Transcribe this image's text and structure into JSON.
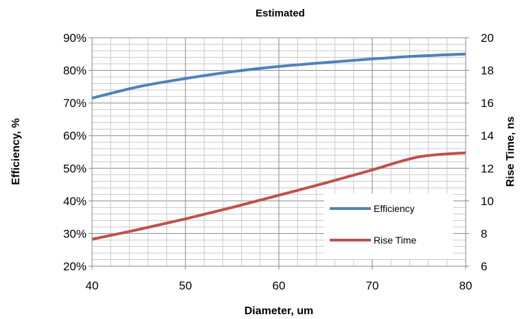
{
  "chart_data": {
    "type": "line",
    "title": "Estimated",
    "xlabel": "Diameter, um",
    "ylabel_left": "Efficiency, %",
    "ylabel_right": "Rise Time, ns",
    "xlim": [
      40,
      80
    ],
    "x_ticks": [
      40,
      50,
      60,
      70,
      80
    ],
    "x_tick_labels": [
      "40",
      "50",
      "60",
      "70",
      "80"
    ],
    "ylim_left": [
      20,
      90
    ],
    "y_left_ticks": [
      20,
      30,
      40,
      50,
      60,
      70,
      80,
      90
    ],
    "y_left_tick_labels": [
      "20%",
      "30%",
      "40%",
      "50%",
      "60%",
      "70%",
      "80%",
      "90%"
    ],
    "ylim_right": [
      6,
      20
    ],
    "y_right_ticks": [
      6,
      8,
      10,
      12,
      14,
      16,
      18,
      20
    ],
    "y_right_tick_labels": [
      "6",
      "8",
      "10",
      "12",
      "14",
      "16",
      "18",
      "20"
    ],
    "grid": true,
    "legend_position": "bottom-right",
    "series": [
      {
        "name": "Efficiency",
        "axis": "left",
        "color": "#4f81bd",
        "x": [
          40,
          45,
          50,
          55,
          60,
          65,
          70,
          75,
          80
        ],
        "y": [
          71.5,
          75.0,
          77.5,
          79.6,
          81.2,
          82.4,
          83.5,
          84.4,
          85.0
        ]
      },
      {
        "name": "Rise Time",
        "axis": "right",
        "color": "#c0504d",
        "x": [
          40,
          45,
          50,
          55,
          60,
          65,
          70,
          75,
          80
        ],
        "y": [
          7.65,
          8.25,
          8.9,
          9.6,
          10.35,
          11.1,
          11.9,
          12.7,
          12.95
        ]
      }
    ]
  }
}
